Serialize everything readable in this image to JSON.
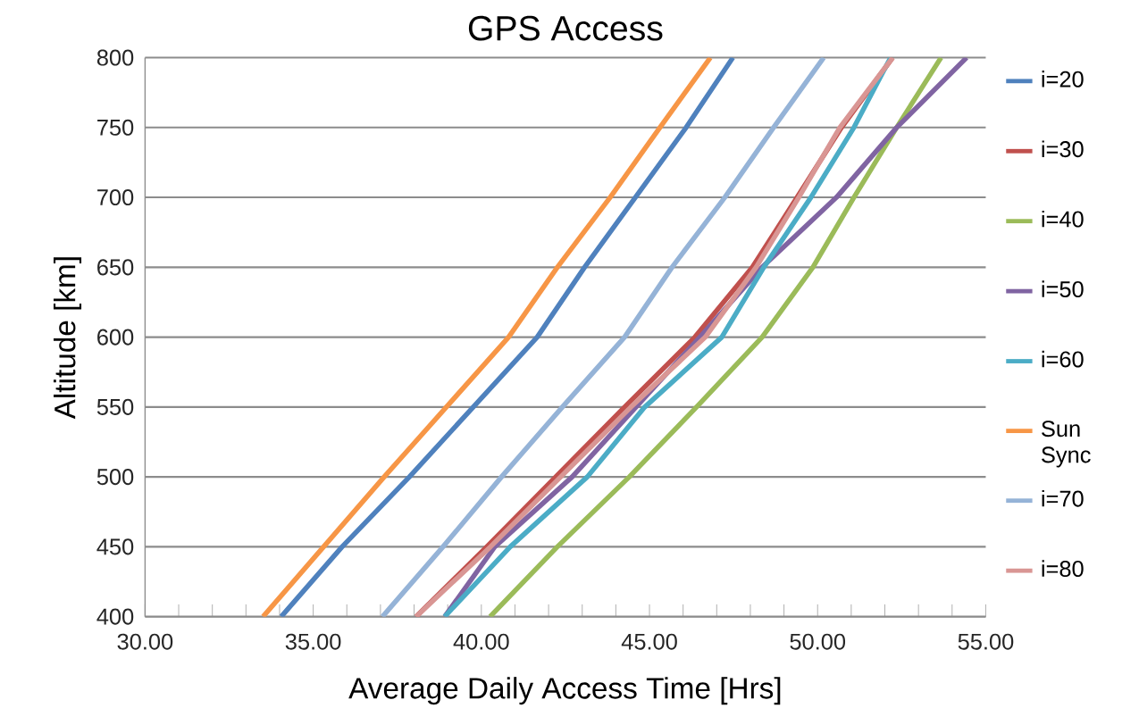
{
  "chart_data": {
    "type": "line",
    "title": "GPS Access",
    "xlabel": "Average Daily Access Time [Hrs]",
    "ylabel": "Altitude [km]",
    "xlim": [
      30,
      55
    ],
    "ylim": [
      400,
      800
    ],
    "xticks": [
      {
        "value": 30,
        "label": "30.00"
      },
      {
        "value": 31,
        "label": null
      },
      {
        "value": 32,
        "label": null
      },
      {
        "value": 33,
        "label": null
      },
      {
        "value": 34,
        "label": null
      },
      {
        "value": 35,
        "label": "35.00"
      },
      {
        "value": 36,
        "label": null
      },
      {
        "value": 37,
        "label": null
      },
      {
        "value": 38,
        "label": null
      },
      {
        "value": 39,
        "label": null
      },
      {
        "value": 40,
        "label": "40.00"
      },
      {
        "value": 41,
        "label": null
      },
      {
        "value": 42,
        "label": null
      },
      {
        "value": 43,
        "label": null
      },
      {
        "value": 44,
        "label": null
      },
      {
        "value": 45,
        "label": "45.00"
      },
      {
        "value": 46,
        "label": null
      },
      {
        "value": 47,
        "label": null
      },
      {
        "value": 48,
        "label": null
      },
      {
        "value": 49,
        "label": null
      },
      {
        "value": 50,
        "label": "50.00"
      },
      {
        "value": 51,
        "label": null
      },
      {
        "value": 52,
        "label": null
      },
      {
        "value": 53,
        "label": null
      },
      {
        "value": 54,
        "label": null
      },
      {
        "value": 55,
        "label": "55.00"
      }
    ],
    "yticks": [
      400,
      450,
      500,
      550,
      600,
      650,
      700,
      750,
      800
    ],
    "grid": "y",
    "legend": "right",
    "marker": "none",
    "line_style": "solid",
    "series": [
      {
        "name": "i=20",
        "color": "#4f81bd",
        "x": [
          34.05,
          35.86,
          37.86,
          39.76,
          41.66,
          43.07,
          44.58,
          46.09,
          47.48
        ],
        "values": [
          400,
          450,
          500,
          550,
          600,
          650,
          700,
          750,
          800
        ]
      },
      {
        "name": "i=30",
        "color": "#c0504d",
        "x": [
          38.06,
          40.16,
          42.21,
          44.26,
          46.35,
          48.06,
          49.39,
          50.71,
          52.23
        ],
        "values": [
          400,
          450,
          500,
          550,
          600,
          650,
          700,
          750,
          800
        ]
      },
      {
        "name": "i=40",
        "color": "#9bbb59",
        "x": [
          40.26,
          42.26,
          44.4,
          46.4,
          48.35,
          49.86,
          51.08,
          52.35,
          53.67
        ],
        "values": [
          400,
          450,
          500,
          550,
          600,
          650,
          700,
          750,
          800
        ]
      },
      {
        "name": "i=50",
        "color": "#8064a2",
        "x": [
          38.91,
          40.4,
          42.7,
          44.6,
          46.5,
          48.35,
          50.56,
          52.35,
          54.43
        ],
        "values": [
          400,
          450,
          500,
          550,
          600,
          650,
          700,
          750,
          800
        ]
      },
      {
        "name": "i=60",
        "color": "#4bacc6",
        "x": [
          38.91,
          40.86,
          43.15,
          44.86,
          47.15,
          48.4,
          49.8,
          51.08,
          52.17
        ],
        "values": [
          400,
          450,
          500,
          550,
          600,
          650,
          700,
          750,
          800
        ]
      },
      {
        "name": "Sun Sync",
        "color": "#f79646",
        "x": [
          33.51,
          35.31,
          37.11,
          38.96,
          40.81,
          42.26,
          43.83,
          45.31,
          46.81
        ],
        "values": [
          400,
          450,
          500,
          550,
          600,
          650,
          700,
          750,
          800
        ]
      },
      {
        "name": "i=70",
        "color": "#95b3d7",
        "x": [
          37.06,
          38.86,
          40.6,
          42.41,
          44.26,
          45.67,
          47.24,
          48.69,
          50.18
        ],
        "values": [
          400,
          450,
          500,
          550,
          600,
          650,
          700,
          750,
          800
        ]
      },
      {
        "name": "i=80",
        "color": "#d99694",
        "x": [
          38.06,
          40.27,
          42.36,
          44.45,
          46.66,
          48.17,
          49.44,
          50.66,
          52.23
        ],
        "values": [
          400,
          450,
          500,
          550,
          600,
          650,
          700,
          750,
          800
        ]
      }
    ]
  }
}
